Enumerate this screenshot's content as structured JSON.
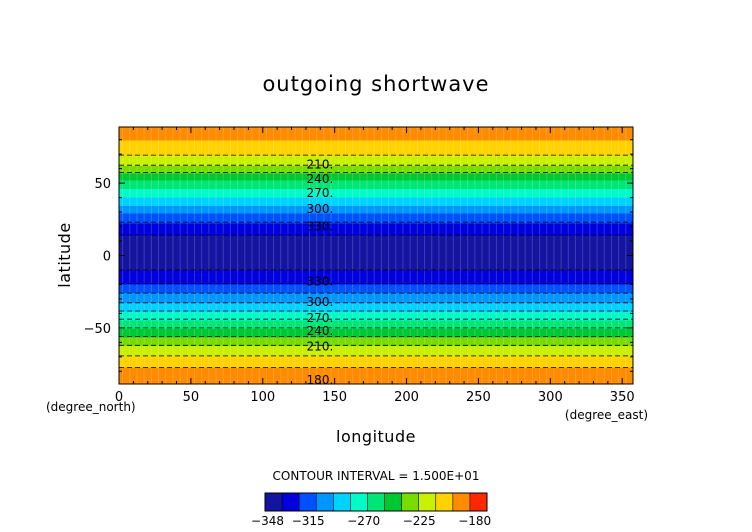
{
  "chart_data": {
    "type": "heatmap",
    "title": "outgoing shortwave",
    "xlabel": "longitude",
    "ylabel": "latitude",
    "x_unit_label": "(degree_east)",
    "y_unit_label": "(degree_north)",
    "xlim": [
      0,
      357.5
    ],
    "ylim": [
      -88.75,
      88.75
    ],
    "x_ticks": [
      0,
      50,
      100,
      150,
      200,
      250,
      300,
      350
    ],
    "x_tick_labels": [
      "0",
      "50",
      "100",
      "150",
      "200",
      "250",
      "300",
      "350"
    ],
    "y_ticks": [
      50,
      0,
      -50
    ],
    "y_tick_labels": [
      "50",
      "0",
      "−50"
    ],
    "contour_interval_text": "CONTOUR INTERVAL = 1.500E+01",
    "colorbar": {
      "min": -350,
      "max": -170,
      "step": 15,
      "tick_values": [
        -348,
        -315,
        -270,
        -225,
        -180
      ],
      "tick_labels": [
        "−348",
        "−315",
        "−270",
        "−225",
        "−180"
      ],
      "colors": [
        "#1414a0",
        "#0000dc",
        "#0050ff",
        "#0096ff",
        "#00d2ff",
        "#00fac8",
        "#00e676",
        "#00c832",
        "#78dc00",
        "#c8f000",
        "#ffd200",
        "#ff8c00",
        "#ff2800"
      ]
    },
    "zonal_profile": [
      {
        "lat": -88.75,
        "value": -172
      },
      {
        "lat": -84,
        "value": -172
      },
      {
        "lat": -80,
        "value": -180
      },
      {
        "lat": -72,
        "value": -195
      },
      {
        "lat": -64,
        "value": -210
      },
      {
        "lat": -58,
        "value": -225
      },
      {
        "lat": -52,
        "value": -240
      },
      {
        "lat": -46,
        "value": -255
      },
      {
        "lat": -40,
        "value": -270
      },
      {
        "lat": -35,
        "value": -285
      },
      {
        "lat": -28,
        "value": -300
      },
      {
        "lat": -22,
        "value": -315
      },
      {
        "lat": -14,
        "value": -330
      },
      {
        "lat": -6,
        "value": -340
      },
      {
        "lat": 0,
        "value": -347
      },
      {
        "lat": 6,
        "value": -345
      },
      {
        "lat": 12,
        "value": -338
      },
      {
        "lat": 18,
        "value": -330
      },
      {
        "lat": 24,
        "value": -318
      },
      {
        "lat": 30,
        "value": -305
      },
      {
        "lat": 35,
        "value": -290
      },
      {
        "lat": 40,
        "value": -275
      },
      {
        "lat": 46,
        "value": -260
      },
      {
        "lat": 52,
        "value": -245
      },
      {
        "lat": 58,
        "value": -228
      },
      {
        "lat": 64,
        "value": -210
      },
      {
        "lat": 72,
        "value": -195
      },
      {
        "lat": 80,
        "value": -185
      },
      {
        "lat": 88.75,
        "value": -180
      }
    ],
    "contour_labels": [
      {
        "text": "210.",
        "lon": 130,
        "lat": 63
      },
      {
        "text": "240.",
        "lon": 130,
        "lat": 53
      },
      {
        "text": "270.",
        "lon": 130,
        "lat": 43
      },
      {
        "text": "300.",
        "lon": 130,
        "lat": 32
      },
      {
        "text": "330.",
        "lon": 130,
        "lat": 20
      },
      {
        "text": "330.",
        "lon": 130,
        "lat": -18
      },
      {
        "text": "300.",
        "lon": 130,
        "lat": -32
      },
      {
        "text": "270.",
        "lon": 130,
        "lat": -43
      },
      {
        "text": "240.",
        "lon": 130,
        "lat": -52
      },
      {
        "text": "210.",
        "lon": 130,
        "lat": -63
      },
      {
        "text": "180.",
        "lon": 130,
        "lat": -86
      }
    ]
  }
}
